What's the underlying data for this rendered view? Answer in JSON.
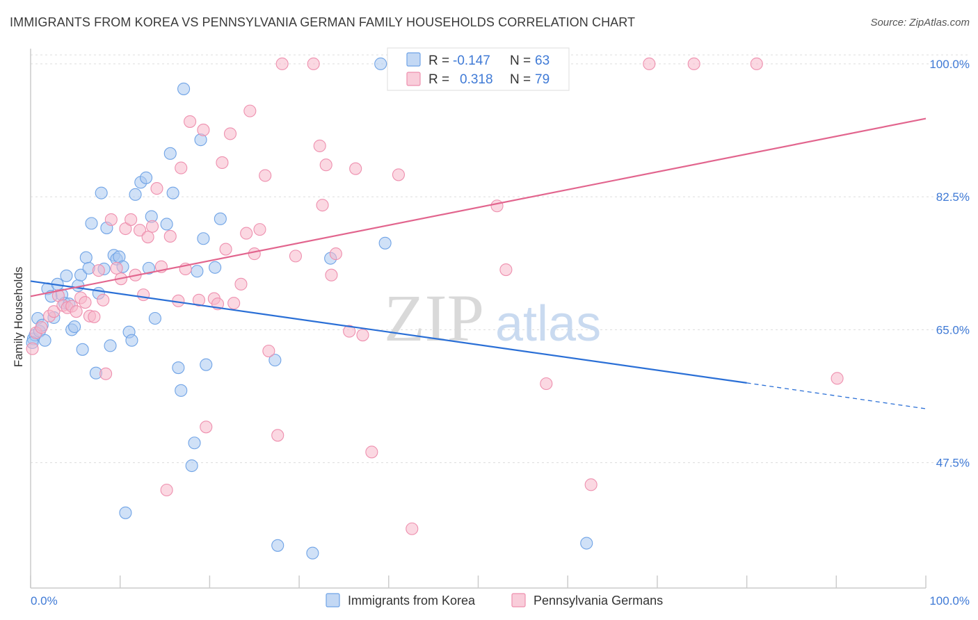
{
  "title": "IMMIGRANTS FROM KOREA VS PENNSYLVANIA GERMAN FAMILY HOUSEHOLDS CORRELATION CHART",
  "source": "Source: ZipAtlas.com",
  "watermark": {
    "zip": "ZIP",
    "atlas": "atlas"
  },
  "legend": {
    "r_label": "R =",
    "n_label": "N =",
    "rows": [
      {
        "r": "-0.147",
        "n": "63",
        "color": "#a9c8f0"
      },
      {
        "r": "0.318",
        "n": "79",
        "color": "#f7b8cb"
      }
    ]
  },
  "chart_data": {
    "type": "scatter",
    "title": "IMMIGRANTS FROM KOREA VS PENNSYLVANIA GERMAN FAMILY HOUSEHOLDS CORRELATION CHART",
    "xlabel": "",
    "ylabel": "Family Households",
    "xlim": [
      0,
      100
    ],
    "ylim": [
      31,
      102
    ],
    "x_tick_labels": [
      "0.0%",
      "100.0%"
    ],
    "y_ticks": [
      47.5,
      65.0,
      82.5,
      100.0
    ],
    "y_tick_labels": [
      "47.5%",
      "65.0%",
      "82.5%",
      "100.0%"
    ],
    "grid": true,
    "legend_position": "bottom",
    "series": [
      {
        "name": "Immigrants from Korea",
        "color": "#6fa3e6",
        "fill": "#a9c8f0",
        "trend_color": "#2a6fd6",
        "trend": {
          "x0": 0,
          "y0": 71.4,
          "x1": 80,
          "y1": 58.0,
          "dash_to_x": 100,
          "dash_to_y": 54.6
        },
        "points": [
          [
            0.3,
            63.8
          ],
          [
            0.5,
            64.3
          ],
          [
            0.8,
            66.5
          ],
          [
            1.0,
            64.8
          ],
          [
            1.3,
            65.6
          ],
          [
            1.6,
            63.6
          ],
          [
            1.9,
            70.4
          ],
          [
            2.3,
            69.4
          ],
          [
            2.6,
            66.6
          ],
          [
            3.0,
            71.0
          ],
          [
            3.5,
            69.6
          ],
          [
            3.8,
            68.5
          ],
          [
            4.0,
            72.1
          ],
          [
            4.3,
            68.4
          ],
          [
            4.6,
            65.0
          ],
          [
            4.9,
            65.4
          ],
          [
            5.3,
            70.8
          ],
          [
            5.6,
            72.2
          ],
          [
            5.8,
            62.4
          ],
          [
            6.2,
            74.5
          ],
          [
            6.5,
            73.1
          ],
          [
            6.8,
            79.0
          ],
          [
            7.3,
            59.3
          ],
          [
            7.6,
            69.8
          ],
          [
            7.9,
            83.0
          ],
          [
            8.2,
            73.0
          ],
          [
            8.5,
            78.4
          ],
          [
            8.9,
            62.9
          ],
          [
            9.3,
            74.8
          ],
          [
            9.6,
            74.3
          ],
          [
            9.9,
            74.6
          ],
          [
            10.3,
            73.3
          ],
          [
            10.6,
            40.9
          ],
          [
            11.0,
            64.7
          ],
          [
            11.3,
            63.6
          ],
          [
            11.7,
            82.8
          ],
          [
            12.3,
            84.4
          ],
          [
            12.9,
            85.0
          ],
          [
            13.2,
            73.1
          ],
          [
            13.5,
            79.9
          ],
          [
            13.9,
            66.5
          ],
          [
            15.2,
            78.9
          ],
          [
            15.6,
            88.2
          ],
          [
            15.9,
            83.0
          ],
          [
            16.5,
            60.0
          ],
          [
            16.8,
            57.0
          ],
          [
            17.1,
            96.7
          ],
          [
            18.0,
            47.1
          ],
          [
            18.3,
            50.1
          ],
          [
            18.6,
            72.7
          ],
          [
            19.0,
            90.0
          ],
          [
            19.3,
            77.0
          ],
          [
            19.6,
            60.4
          ],
          [
            20.6,
            73.2
          ],
          [
            21.2,
            79.6
          ],
          [
            27.3,
            61.0
          ],
          [
            27.6,
            36.6
          ],
          [
            31.5,
            35.6
          ],
          [
            33.5,
            74.4
          ],
          [
            39.1,
            100.0
          ],
          [
            39.6,
            76.4
          ],
          [
            62.1,
            36.9
          ],
          [
            0.2,
            63.3
          ]
        ]
      },
      {
        "name": "Pennsylvania Germans",
        "color": "#ee8fae",
        "fill": "#f7b8cb",
        "trend_color": "#e2658e",
        "trend": {
          "x0": 0,
          "y0": 69.4,
          "x1": 100,
          "y1": 92.8
        },
        "points": [
          [
            0.2,
            62.5
          ],
          [
            0.6,
            64.6
          ],
          [
            1.2,
            65.3
          ],
          [
            2.1,
            66.8
          ],
          [
            2.6,
            67.4
          ],
          [
            3.1,
            69.5
          ],
          [
            3.6,
            68.2
          ],
          [
            4.1,
            67.9
          ],
          [
            4.6,
            68.1
          ],
          [
            5.1,
            67.4
          ],
          [
            5.6,
            69.2
          ],
          [
            6.1,
            68.6
          ],
          [
            6.6,
            66.8
          ],
          [
            7.1,
            66.7
          ],
          [
            7.6,
            72.8
          ],
          [
            8.1,
            68.9
          ],
          [
            8.4,
            59.2
          ],
          [
            9.0,
            79.5
          ],
          [
            9.6,
            73.1
          ],
          [
            10.1,
            71.7
          ],
          [
            10.6,
            78.3
          ],
          [
            11.2,
            79.5
          ],
          [
            11.7,
            72.2
          ],
          [
            12.2,
            78.1
          ],
          [
            12.6,
            69.6
          ],
          [
            13.1,
            77.2
          ],
          [
            13.6,
            78.6
          ],
          [
            14.1,
            83.6
          ],
          [
            14.6,
            73.3
          ],
          [
            15.2,
            43.9
          ],
          [
            15.6,
            77.3
          ],
          [
            16.5,
            68.8
          ],
          [
            16.8,
            86.3
          ],
          [
            17.3,
            73.0
          ],
          [
            17.8,
            92.4
          ],
          [
            18.8,
            68.9
          ],
          [
            19.3,
            91.3
          ],
          [
            19.6,
            52.2
          ],
          [
            20.5,
            69.1
          ],
          [
            20.9,
            68.4
          ],
          [
            21.4,
            87.0
          ],
          [
            21.8,
            75.6
          ],
          [
            22.3,
            90.8
          ],
          [
            22.7,
            68.5
          ],
          [
            23.5,
            71.0
          ],
          [
            24.1,
            77.7
          ],
          [
            24.5,
            93.8
          ],
          [
            25.0,
            75.0
          ],
          [
            25.6,
            78.2
          ],
          [
            26.2,
            85.3
          ],
          [
            26.6,
            62.2
          ],
          [
            27.6,
            51.1
          ],
          [
            28.1,
            100.0
          ],
          [
            29.6,
            74.7
          ],
          [
            31.6,
            100.0
          ],
          [
            32.3,
            89.2
          ],
          [
            32.6,
            81.4
          ],
          [
            33.0,
            86.7
          ],
          [
            33.6,
            72.2
          ],
          [
            34.1,
            75.0
          ],
          [
            35.6,
            64.8
          ],
          [
            36.3,
            86.2
          ],
          [
            37.1,
            64.3
          ],
          [
            38.1,
            48.9
          ],
          [
            40.6,
            100.0
          ],
          [
            41.1,
            85.4
          ],
          [
            42.6,
            38.8
          ],
          [
            44.1,
            100.0
          ],
          [
            46.1,
            100.0
          ],
          [
            47.6,
            100.0
          ],
          [
            52.1,
            81.3
          ],
          [
            53.1,
            72.9
          ],
          [
            57.6,
            57.9
          ],
          [
            62.6,
            44.6
          ],
          [
            69.1,
            100.0
          ],
          [
            74.1,
            100.0
          ],
          [
            81.1,
            100.0
          ],
          [
            90.1,
            58.6
          ],
          [
            45.1,
            100.0
          ]
        ]
      }
    ]
  }
}
